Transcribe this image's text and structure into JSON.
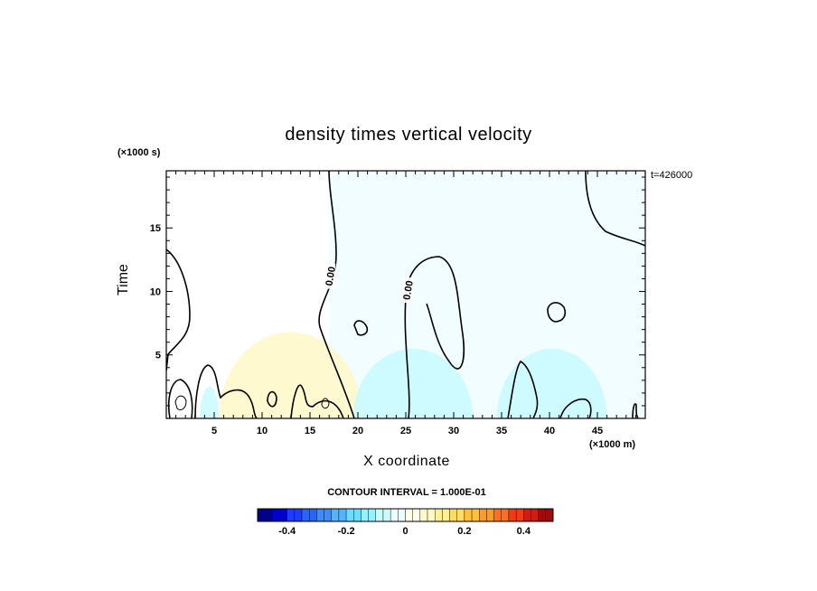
{
  "chart_data": {
    "type": "contour",
    "title": "density times vertical velocity",
    "xlabel": "X coordinate",
    "ylabel": "Time",
    "x_unit": "(×1000 m)",
    "y_unit": "(×1000 s)",
    "time_stamp": "t=426000",
    "xlim": [
      0,
      50
    ],
    "ylim": [
      0,
      19.5
    ],
    "x_ticks": [
      5,
      10,
      15,
      20,
      25,
      30,
      35,
      40,
      45
    ],
    "y_ticks": [
      5,
      10,
      15
    ],
    "contour_interval_text": "CONTOUR INTERVAL = 1.000E-01",
    "contour_labels": [
      {
        "text": "0.00",
        "x": 17.1,
        "y": 11.2
      },
      {
        "text": "0.00",
        "x": 25.2,
        "y": 10.1
      }
    ],
    "shaded_regions": [
      {
        "sign": "positive",
        "x": [
          5.5,
          20.5
        ],
        "y": [
          0,
          6.8
        ],
        "value": 0.05
      },
      {
        "sign": "negative",
        "x": [
          19.5,
          32
        ],
        "y": [
          0,
          5.5
        ],
        "value": -0.05
      },
      {
        "sign": "negative",
        "x": [
          34.5,
          46
        ],
        "y": [
          0,
          5.5
        ],
        "value": -0.05
      },
      {
        "sign": "negative",
        "x": [
          3.5,
          5.5
        ],
        "y": [
          0,
          2.5
        ],
        "value": -0.05
      }
    ],
    "colorbar": {
      "min": -0.5,
      "max": 0.5,
      "tick_values": [
        -0.4,
        -0.2,
        0,
        0.2,
        0.4
      ],
      "tick_labels": [
        "-0.4",
        "-0.2",
        "0",
        "0.2",
        "0.4"
      ],
      "colors_negative": [
        "#00008b",
        "#0000cd",
        "#1e3cff",
        "#2864ff",
        "#3c8cff",
        "#50b4ff",
        "#6edcff",
        "#96f0ff",
        "#c8faff",
        "#eafdff"
      ],
      "colors_positive": [
        "#fffde8",
        "#fff8c8",
        "#fff096",
        "#ffdc64",
        "#ffc03c",
        "#ff9a28",
        "#ff6e1e",
        "#f03c14",
        "#cd1e0f",
        "#a00a0a"
      ]
    }
  }
}
